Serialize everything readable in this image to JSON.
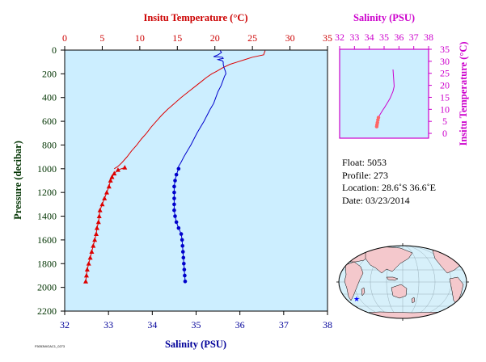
{
  "chart_data": [
    {
      "type": "line",
      "title": "",
      "top_axis_label": "Insitu Temperature (°C)",
      "xlabel": "Salinity (PSU)",
      "ylabel": "Pressure (decibar)",
      "temperature_axis": {
        "range": [
          0,
          35
        ],
        "ticks": [
          "0",
          "5",
          "10",
          "15",
          "20",
          "25",
          "30",
          "35"
        ],
        "color": "#cc0000"
      },
      "salinity_axis": {
        "range": [
          32,
          38
        ],
        "ticks": [
          "32",
          "33",
          "34",
          "35",
          "36",
          "37",
          "38"
        ],
        "color": "#000099"
      },
      "pressure_axis": {
        "range": [
          0,
          2200
        ],
        "inverted": true,
        "ticks": [
          "0",
          "200",
          "400",
          "600",
          "800",
          "1000",
          "1200",
          "1400",
          "1600",
          "1800",
          "2000",
          "2200"
        ],
        "color": "#003300"
      },
      "background": "#cceeff",
      "series": [
        {
          "quantity": "temperature",
          "color": "#dd0000",
          "marker": "triangle",
          "continuous": {
            "pressure": [
              5,
              20,
              40,
              60,
              80,
              100,
              120,
              150,
              180,
              200,
              230,
              260,
              300,
              350,
              400,
              450,
              500,
              550,
              600,
              650,
              700,
              750,
              800,
              850,
              900,
              950,
              980,
              1000
            ],
            "value": [
              26.7,
              26.6,
              26.5,
              25.0,
              24.0,
              23.0,
              22.0,
              21.0,
              20.2,
              19.6,
              18.9,
              18.3,
              17.5,
              16.5,
              15.5,
              14.6,
              13.7,
              12.9,
              12.2,
              11.5,
              10.9,
              10.2,
              9.6,
              8.9,
              8.3,
              7.6,
              7.1,
              6.6
            ]
          },
          "discrete": {
            "pressure": [
              990,
              1010,
              1040,
              1070,
              1100,
              1150,
              1200,
              1250,
              1300,
              1350,
              1400,
              1450,
              1500,
              1550,
              1600,
              1650,
              1700,
              1750,
              1800,
              1850,
              1900,
              1950
            ],
            "value": [
              8.0,
              7.1,
              6.6,
              6.3,
              6.1,
              5.9,
              5.6,
              5.3,
              5.0,
              4.7,
              4.6,
              4.5,
              4.3,
              4.2,
              4.0,
              3.8,
              3.6,
              3.4,
              3.2,
              3.0,
              2.9,
              2.8
            ]
          }
        },
        {
          "quantity": "salinity",
          "color": "#0000cc",
          "marker": "circle",
          "continuous": {
            "pressure": [
              5,
              20,
              40,
              55,
              60,
              70,
              75,
              80,
              90,
              100,
              120,
              150,
              180,
              200,
              220,
              250,
              300,
              350,
              400,
              450,
              500,
              550,
              600,
              650,
              700,
              750,
              800,
              850,
              900,
              950,
              980,
              1000
            ],
            "value": [
              35.55,
              35.58,
              35.5,
              35.4,
              35.6,
              35.62,
              35.55,
              35.5,
              35.6,
              35.62,
              35.62,
              35.64,
              35.67,
              35.68,
              35.65,
              35.62,
              35.57,
              35.5,
              35.45,
              35.4,
              35.32,
              35.25,
              35.18,
              35.1,
              35.02,
              34.95,
              34.88,
              34.8,
              34.72,
              34.65,
              34.6,
              34.6
            ]
          },
          "discrete": {
            "pressure": [
              1000,
              1050,
              1100,
              1150,
              1200,
              1250,
              1300,
              1350,
              1400,
              1450,
              1500,
              1550,
              1600,
              1650,
              1700,
              1750,
              1800,
              1850,
              1900,
              1950
            ],
            "value": [
              34.6,
              34.55,
              34.52,
              34.5,
              34.5,
              34.5,
              34.5,
              34.5,
              34.52,
              34.55,
              34.6,
              34.66,
              34.68,
              34.69,
              34.7,
              34.71,
              34.72,
              34.73,
              34.74,
              34.75
            ]
          }
        }
      ]
    },
    {
      "type": "line",
      "title": "",
      "top_axis_label": "Salinity (PSU)",
      "ylabel": "Insitu Temperature (°C)",
      "salinity_axis": {
        "range": [
          32,
          38
        ],
        "ticks": [
          "32",
          "33",
          "34",
          "35",
          "36",
          "37",
          "38"
        ]
      },
      "temperature_axis": {
        "range": [
          -2,
          35
        ],
        "ticks": [
          "0",
          "5",
          "10",
          "15",
          "20",
          "25",
          "30",
          "35"
        ]
      },
      "color": "#cc00cc",
      "series": [
        {
          "salinity": [
            35.6,
            35.68,
            35.6,
            35.5,
            35.4,
            35.3,
            35.2,
            35.1,
            35.0,
            34.9,
            34.8,
            34.7,
            34.62,
            34.58,
            34.55,
            34.52,
            34.5
          ],
          "temperature": [
            26.6,
            19.6,
            17.5,
            16.0,
            14.6,
            13.5,
            12.5,
            11.5,
            10.5,
            9.6,
            8.6,
            7.6,
            6.6,
            5.6,
            4.5,
            3.6,
            2.8
          ]
        }
      ]
    }
  ],
  "info": {
    "float": "Float:  5053",
    "profile": "Profile:  273",
    "location": "Location:  28.6˚S  36.6˚E",
    "date": "Date:  03/23/2014"
  },
  "map": {
    "marker_color": "#0000ff",
    "land_color": "#f4c8cc",
    "ocean_color": "#d7f0fa"
  },
  "file_id": "F5053WOAC1_0273"
}
